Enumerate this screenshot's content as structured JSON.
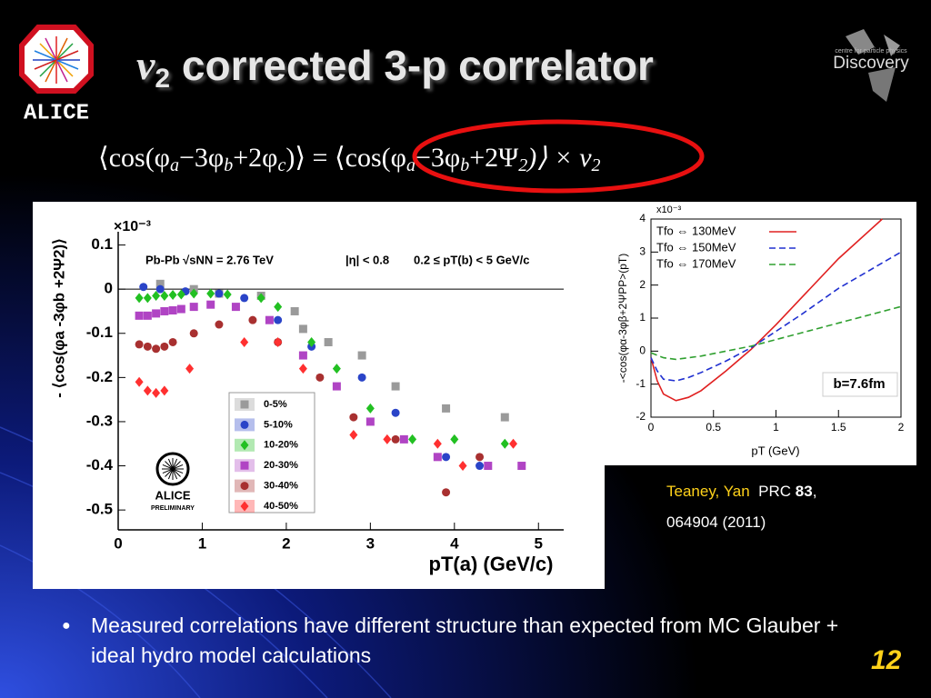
{
  "title": {
    "symbol": "v",
    "subscript": "2",
    "text": " corrected 3-p correlator"
  },
  "equation": {
    "parts": [
      "⟨cos(φ",
      "a",
      "−3φ",
      "b",
      "+2φ",
      "c",
      ")⟩ = ⟨cos(φ",
      "a",
      "−3φ",
      "b",
      "+2Ψ",
      "2",
      ")⟩ × v",
      "2"
    ]
  },
  "logos": {
    "alice": "ALICE",
    "discovery": "Discovery",
    "discovery_sub": "centre for particle physics"
  },
  "chart_data": [
    {
      "type": "scatter",
      "y_label": "- ⟨cos(φa -3φb +2Ψ2)⟩",
      "x_label": "pT(a) (GeV/c)",
      "multiplier": "×10⁻³",
      "annotations": [
        "Pb-Pb  √sNN = 2.76 TeV",
        "|η| < 0.8",
        "0.2 ≤ pT(b) < 5 GeV/c",
        "ALICE",
        "PRELIMINARY"
      ],
      "xlim": [
        0,
        5.3
      ],
      "xticks": [
        0,
        1,
        2,
        3,
        4,
        5
      ],
      "ylim": [
        -0.545,
        0.13
      ],
      "yticks": [
        0.1,
        0,
        -0.1,
        -0.2,
        -0.3,
        -0.4,
        -0.5
      ],
      "zero_line": true,
      "legend": "lower center",
      "series": [
        {
          "name": "0-5%",
          "color": "#9a9a9a",
          "marker": "square",
          "x": [
            0.5,
            0.9,
            1.2,
            1.7,
            2.1,
            2.2,
            2.5,
            2.9,
            3.3,
            3.9,
            4.6
          ],
          "values": [
            0.012,
            0,
            -0.01,
            -0.015,
            -0.05,
            -0.09,
            -0.12,
            -0.15,
            -0.22,
            -0.27,
            -0.29
          ]
        },
        {
          "name": "5-10%",
          "color": "#2a44c8",
          "marker": "circle",
          "x": [
            0.3,
            0.5,
            0.8,
            1.2,
            1.5,
            1.9,
            2.3,
            2.9,
            3.3,
            3.9,
            4.3
          ],
          "values": [
            0.005,
            0,
            -0.005,
            -0.01,
            -0.02,
            -0.07,
            -0.13,
            -0.2,
            -0.28,
            -0.38,
            -0.4
          ]
        },
        {
          "name": "10-20%",
          "color": "#22c022",
          "marker": "diamond",
          "x": [
            0.25,
            0.35,
            0.45,
            0.55,
            0.65,
            0.75,
            0.9,
            1.1,
            1.3,
            1.7,
            1.9,
            2.3,
            2.6,
            3.0,
            3.5,
            4.0,
            4.6
          ],
          "values": [
            -0.02,
            -0.02,
            -0.015,
            -0.015,
            -0.013,
            -0.012,
            -0.01,
            -0.01,
            -0.012,
            -0.02,
            -0.04,
            -0.12,
            -0.18,
            -0.27,
            -0.34,
            -0.34,
            -0.35
          ]
        },
        {
          "name": "20-30%",
          "color": "#b044c4",
          "marker": "square",
          "x": [
            0.25,
            0.35,
            0.45,
            0.55,
            0.65,
            0.75,
            0.9,
            1.1,
            1.4,
            1.8,
            2.2,
            2.6,
            3.0,
            3.4,
            3.8,
            4.4,
            4.8
          ],
          "values": [
            -0.06,
            -0.06,
            -0.055,
            -0.05,
            -0.048,
            -0.045,
            -0.04,
            -0.035,
            -0.04,
            -0.07,
            -0.15,
            -0.22,
            -0.3,
            -0.34,
            -0.38,
            -0.4,
            -0.4
          ]
        },
        {
          "name": "30-40%",
          "color": "#a83030",
          "marker": "circle",
          "x": [
            0.25,
            0.35,
            0.45,
            0.55,
            0.65,
            0.9,
            1.2,
            1.6,
            1.9,
            2.4,
            2.8,
            3.3,
            3.9,
            4.3
          ],
          "values": [
            -0.125,
            -0.13,
            -0.135,
            -0.13,
            -0.12,
            -0.1,
            -0.08,
            -0.07,
            -0.12,
            -0.2,
            -0.29,
            -0.34,
            -0.46,
            -0.38
          ]
        },
        {
          "name": "40-50%",
          "color": "#ff3030",
          "marker": "diamond",
          "x": [
            0.25,
            0.35,
            0.45,
            0.55,
            0.85,
            1.5,
            1.9,
            2.2,
            2.8,
            3.2,
            3.8,
            4.1,
            4.7
          ],
          "values": [
            -0.21,
            -0.23,
            -0.235,
            -0.23,
            -0.18,
            -0.12,
            -0.12,
            -0.18,
            -0.33,
            -0.34,
            -0.35,
            -0.4,
            -0.35
          ]
        }
      ]
    },
    {
      "type": "line",
      "y_label": "-<cos(φα-3φβ+2ΨPP>(pT)",
      "x_label": "pT (GeV)",
      "multiplier": "x10⁻³",
      "annotations": [
        "b=7.6fm"
      ],
      "xlim": [
        0,
        2
      ],
      "xticks": [
        0,
        0.5,
        1,
        1.5,
        2
      ],
      "ylim": [
        -2,
        4
      ],
      "yticks": [
        4,
        3,
        2,
        1,
        0,
        -1,
        -2
      ],
      "frame": true,
      "legend": "upper left",
      "series": [
        {
          "name": "Tfo ⇔ 130MeV",
          "color": "#e02020",
          "dash": "solid",
          "x": [
            0,
            0.05,
            0.1,
            0.2,
            0.3,
            0.4,
            0.6,
            0.8,
            1.0,
            1.2,
            1.5,
            1.85
          ],
          "values": [
            -0.2,
            -0.9,
            -1.3,
            -1.5,
            -1.4,
            -1.2,
            -0.6,
            0.05,
            0.8,
            1.6,
            2.8,
            4.0
          ]
        },
        {
          "name": "Tfo ⇔ 150MeV",
          "color": "#2030d0",
          "dash": "dashed",
          "x": [
            0,
            0.05,
            0.1,
            0.2,
            0.3,
            0.4,
            0.6,
            0.8,
            1.0,
            1.2,
            1.5,
            2.0
          ],
          "values": [
            -0.2,
            -0.6,
            -0.85,
            -0.9,
            -0.8,
            -0.65,
            -0.3,
            0.1,
            0.6,
            1.1,
            1.9,
            3.0
          ]
        },
        {
          "name": "Tfo ⇔ 170MeV",
          "color": "#30a030",
          "dash": "dashed",
          "x": [
            0,
            0.1,
            0.2,
            0.4,
            0.6,
            0.8,
            1.0,
            1.2,
            1.5,
            2.0
          ],
          "values": [
            -0.05,
            -0.2,
            -0.25,
            -0.15,
            0,
            0.15,
            0.35,
            0.55,
            0.85,
            1.35
          ]
        }
      ]
    }
  ],
  "citation": {
    "authors": "Teaney, Yan",
    "journal": "PRC",
    "volume": "83",
    "separator": ",",
    "pages": "064904  (2011)"
  },
  "bullet": "Measured correlations have different structure than expected from MC Glauber + ideal hydro model calculations",
  "page_number": "12"
}
